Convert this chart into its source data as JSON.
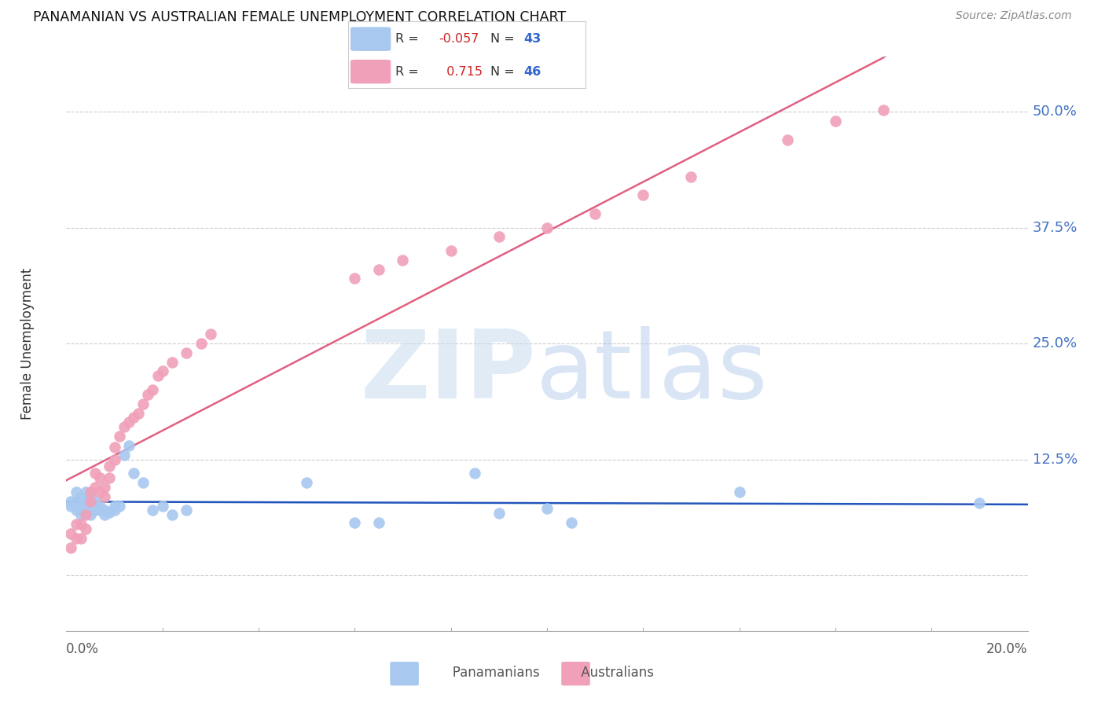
{
  "title": "PANAMANIAN VS AUSTRALIAN FEMALE UNEMPLOYMENT CORRELATION CHART",
  "source": "Source: ZipAtlas.com",
  "ylabel": "Female Unemployment",
  "blue_color": "#A8C8F0",
  "pink_color": "#F0A0B8",
  "blue_line_color": "#2255BB",
  "pink_line_color": "#E06080",
  "gray_dash_color": "#BBBBBB",
  "watermark_zip_color": "#C8DCF0",
  "watermark_atlas_color": "#A0C0E8",
  "xlim": [
    0.0,
    0.2
  ],
  "ylim": [
    -0.06,
    0.56
  ],
  "yticks": [
    0.0,
    0.125,
    0.25,
    0.375,
    0.5
  ],
  "ytick_labels": [
    "",
    "12.5%",
    "25.0%",
    "37.5%",
    "50.0%"
  ],
  "pan_R": -0.057,
  "pan_N": 43,
  "aus_R": 0.715,
  "aus_N": 46,
  "pan_x": [
    0.001,
    0.001,
    0.002,
    0.002,
    0.002,
    0.003,
    0.003,
    0.003,
    0.003,
    0.004,
    0.004,
    0.004,
    0.005,
    0.005,
    0.005,
    0.006,
    0.006,
    0.006,
    0.007,
    0.007,
    0.008,
    0.008,
    0.009,
    0.01,
    0.01,
    0.011,
    0.012,
    0.013,
    0.014,
    0.016,
    0.018,
    0.02,
    0.022,
    0.025,
    0.05,
    0.06,
    0.065,
    0.085,
    0.09,
    0.1,
    0.105,
    0.14,
    0.19
  ],
  "pan_y": [
    0.075,
    0.08,
    0.07,
    0.08,
    0.09,
    0.065,
    0.07,
    0.075,
    0.085,
    0.07,
    0.08,
    0.09,
    0.065,
    0.075,
    0.085,
    0.07,
    0.075,
    0.08,
    0.07,
    0.075,
    0.065,
    0.07,
    0.068,
    0.07,
    0.075,
    0.075,
    0.13,
    0.14,
    0.11,
    0.1,
    0.07,
    0.075,
    0.065,
    0.07,
    0.1,
    0.057,
    0.057,
    0.11,
    0.067,
    0.072,
    0.057,
    0.09,
    0.078
  ],
  "aus_x": [
    0.001,
    0.001,
    0.002,
    0.002,
    0.003,
    0.003,
    0.004,
    0.004,
    0.005,
    0.005,
    0.006,
    0.006,
    0.007,
    0.007,
    0.008,
    0.008,
    0.009,
    0.009,
    0.01,
    0.01,
    0.011,
    0.012,
    0.013,
    0.014,
    0.015,
    0.016,
    0.017,
    0.018,
    0.019,
    0.02,
    0.022,
    0.025,
    0.028,
    0.03,
    0.06,
    0.065,
    0.07,
    0.08,
    0.09,
    0.1,
    0.11,
    0.12,
    0.13,
    0.15,
    0.16,
    0.17
  ],
  "aus_y": [
    0.03,
    0.045,
    0.04,
    0.055,
    0.04,
    0.055,
    0.05,
    0.065,
    0.08,
    0.09,
    0.095,
    0.11,
    0.09,
    0.105,
    0.085,
    0.095,
    0.105,
    0.118,
    0.125,
    0.138,
    0.15,
    0.16,
    0.165,
    0.17,
    0.175,
    0.185,
    0.195,
    0.2,
    0.215,
    0.22,
    0.23,
    0.24,
    0.25,
    0.26,
    0.32,
    0.33,
    0.34,
    0.35,
    0.365,
    0.375,
    0.39,
    0.41,
    0.43,
    0.47,
    0.49,
    0.502
  ]
}
